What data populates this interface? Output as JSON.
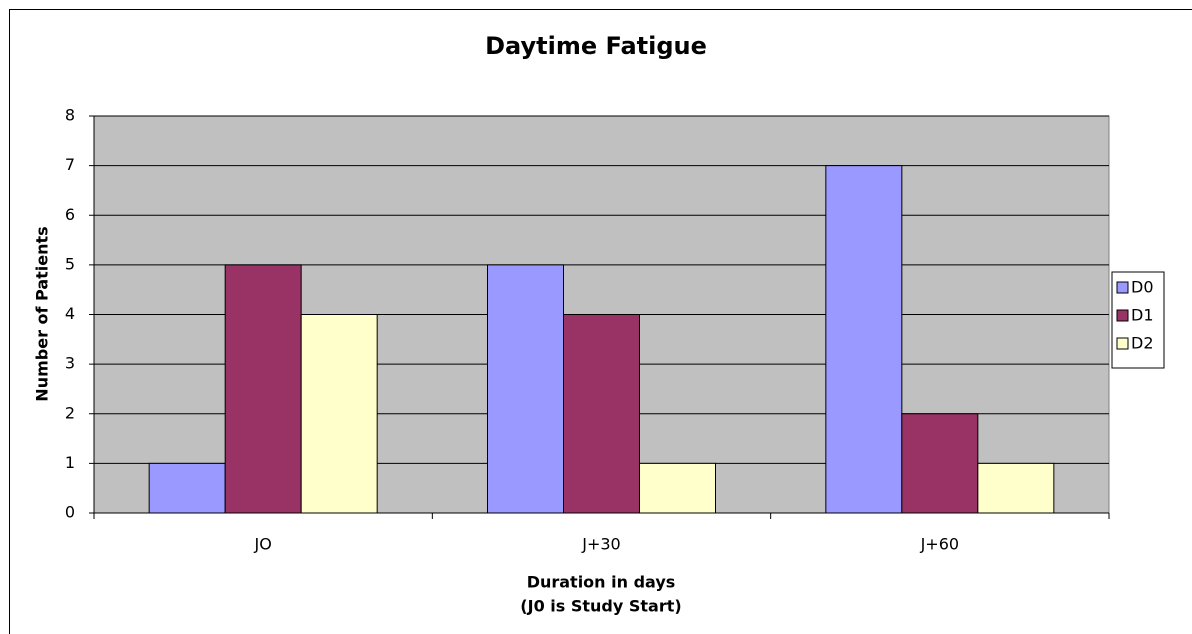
{
  "chart_data": {
    "type": "bar",
    "title": "Daytime Fatigue",
    "xlabel": [
      "Duration in days",
      "(J0 is Study Start)"
    ],
    "ylabel": "Number of Patients",
    "categories": [
      "JO",
      "J+30",
      "J+60"
    ],
    "series": [
      {
        "name": "D0",
        "color": "#9999ff",
        "values": [
          1,
          5,
          7
        ]
      },
      {
        "name": "D1",
        "color": "#993366",
        "values": [
          5,
          4,
          2
        ]
      },
      {
        "name": "D2",
        "color": "#ffffcc",
        "values": [
          4,
          1,
          1
        ]
      }
    ],
    "ylim": [
      0,
      8
    ],
    "yticks": [
      0,
      1,
      2,
      3,
      4,
      5,
      6,
      7,
      8
    ],
    "grid": true,
    "legend": "right"
  }
}
